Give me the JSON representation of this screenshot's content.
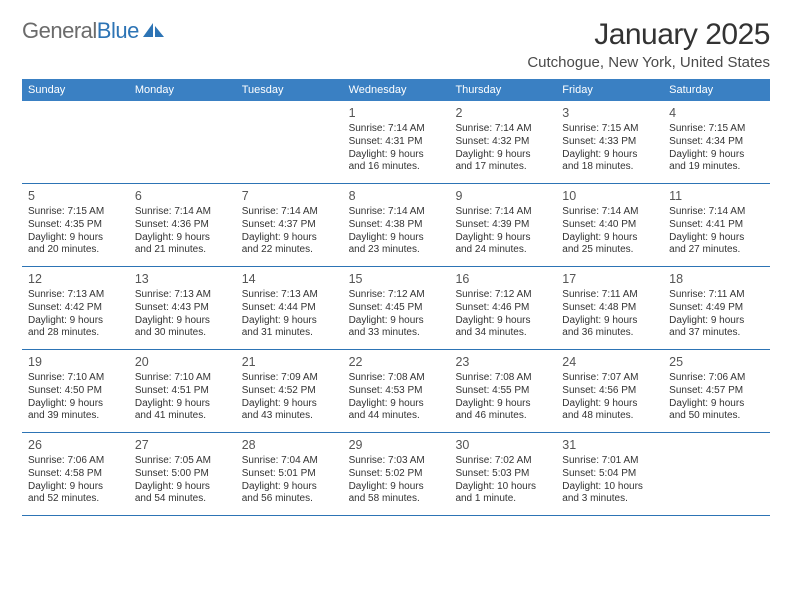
{
  "logo": {
    "text_gray": "General",
    "text_blue": "Blue"
  },
  "title": "January 2025",
  "location": "Cutchogue, New York, United States",
  "colors": {
    "header_bar": "#3a80c3",
    "divider": "#2d74b5",
    "text": "#333333",
    "logo_gray": "#6b6b6b",
    "logo_blue": "#2d74b5"
  },
  "weekdays": [
    "Sunday",
    "Monday",
    "Tuesday",
    "Wednesday",
    "Thursday",
    "Friday",
    "Saturday"
  ],
  "weeks": [
    [
      {
        "num": "",
        "lines": []
      },
      {
        "num": "",
        "lines": []
      },
      {
        "num": "",
        "lines": []
      },
      {
        "num": "1",
        "lines": [
          "Sunrise: 7:14 AM",
          "Sunset: 4:31 PM",
          "Daylight: 9 hours",
          "and 16 minutes."
        ]
      },
      {
        "num": "2",
        "lines": [
          "Sunrise: 7:14 AM",
          "Sunset: 4:32 PM",
          "Daylight: 9 hours",
          "and 17 minutes."
        ]
      },
      {
        "num": "3",
        "lines": [
          "Sunrise: 7:15 AM",
          "Sunset: 4:33 PM",
          "Daylight: 9 hours",
          "and 18 minutes."
        ]
      },
      {
        "num": "4",
        "lines": [
          "Sunrise: 7:15 AM",
          "Sunset: 4:34 PM",
          "Daylight: 9 hours",
          "and 19 minutes."
        ]
      }
    ],
    [
      {
        "num": "5",
        "lines": [
          "Sunrise: 7:15 AM",
          "Sunset: 4:35 PM",
          "Daylight: 9 hours",
          "and 20 minutes."
        ]
      },
      {
        "num": "6",
        "lines": [
          "Sunrise: 7:14 AM",
          "Sunset: 4:36 PM",
          "Daylight: 9 hours",
          "and 21 minutes."
        ]
      },
      {
        "num": "7",
        "lines": [
          "Sunrise: 7:14 AM",
          "Sunset: 4:37 PM",
          "Daylight: 9 hours",
          "and 22 minutes."
        ]
      },
      {
        "num": "8",
        "lines": [
          "Sunrise: 7:14 AM",
          "Sunset: 4:38 PM",
          "Daylight: 9 hours",
          "and 23 minutes."
        ]
      },
      {
        "num": "9",
        "lines": [
          "Sunrise: 7:14 AM",
          "Sunset: 4:39 PM",
          "Daylight: 9 hours",
          "and 24 minutes."
        ]
      },
      {
        "num": "10",
        "lines": [
          "Sunrise: 7:14 AM",
          "Sunset: 4:40 PM",
          "Daylight: 9 hours",
          "and 25 minutes."
        ]
      },
      {
        "num": "11",
        "lines": [
          "Sunrise: 7:14 AM",
          "Sunset: 4:41 PM",
          "Daylight: 9 hours",
          "and 27 minutes."
        ]
      }
    ],
    [
      {
        "num": "12",
        "lines": [
          "Sunrise: 7:13 AM",
          "Sunset: 4:42 PM",
          "Daylight: 9 hours",
          "and 28 minutes."
        ]
      },
      {
        "num": "13",
        "lines": [
          "Sunrise: 7:13 AM",
          "Sunset: 4:43 PM",
          "Daylight: 9 hours",
          "and 30 minutes."
        ]
      },
      {
        "num": "14",
        "lines": [
          "Sunrise: 7:13 AM",
          "Sunset: 4:44 PM",
          "Daylight: 9 hours",
          "and 31 minutes."
        ]
      },
      {
        "num": "15",
        "lines": [
          "Sunrise: 7:12 AM",
          "Sunset: 4:45 PM",
          "Daylight: 9 hours",
          "and 33 minutes."
        ]
      },
      {
        "num": "16",
        "lines": [
          "Sunrise: 7:12 AM",
          "Sunset: 4:46 PM",
          "Daylight: 9 hours",
          "and 34 minutes."
        ]
      },
      {
        "num": "17",
        "lines": [
          "Sunrise: 7:11 AM",
          "Sunset: 4:48 PM",
          "Daylight: 9 hours",
          "and 36 minutes."
        ]
      },
      {
        "num": "18",
        "lines": [
          "Sunrise: 7:11 AM",
          "Sunset: 4:49 PM",
          "Daylight: 9 hours",
          "and 37 minutes."
        ]
      }
    ],
    [
      {
        "num": "19",
        "lines": [
          "Sunrise: 7:10 AM",
          "Sunset: 4:50 PM",
          "Daylight: 9 hours",
          "and 39 minutes."
        ]
      },
      {
        "num": "20",
        "lines": [
          "Sunrise: 7:10 AM",
          "Sunset: 4:51 PM",
          "Daylight: 9 hours",
          "and 41 minutes."
        ]
      },
      {
        "num": "21",
        "lines": [
          "Sunrise: 7:09 AM",
          "Sunset: 4:52 PM",
          "Daylight: 9 hours",
          "and 43 minutes."
        ]
      },
      {
        "num": "22",
        "lines": [
          "Sunrise: 7:08 AM",
          "Sunset: 4:53 PM",
          "Daylight: 9 hours",
          "and 44 minutes."
        ]
      },
      {
        "num": "23",
        "lines": [
          "Sunrise: 7:08 AM",
          "Sunset: 4:55 PM",
          "Daylight: 9 hours",
          "and 46 minutes."
        ]
      },
      {
        "num": "24",
        "lines": [
          "Sunrise: 7:07 AM",
          "Sunset: 4:56 PM",
          "Daylight: 9 hours",
          "and 48 minutes."
        ]
      },
      {
        "num": "25",
        "lines": [
          "Sunrise: 7:06 AM",
          "Sunset: 4:57 PM",
          "Daylight: 9 hours",
          "and 50 minutes."
        ]
      }
    ],
    [
      {
        "num": "26",
        "lines": [
          "Sunrise: 7:06 AM",
          "Sunset: 4:58 PM",
          "Daylight: 9 hours",
          "and 52 minutes."
        ]
      },
      {
        "num": "27",
        "lines": [
          "Sunrise: 7:05 AM",
          "Sunset: 5:00 PM",
          "Daylight: 9 hours",
          "and 54 minutes."
        ]
      },
      {
        "num": "28",
        "lines": [
          "Sunrise: 7:04 AM",
          "Sunset: 5:01 PM",
          "Daylight: 9 hours",
          "and 56 minutes."
        ]
      },
      {
        "num": "29",
        "lines": [
          "Sunrise: 7:03 AM",
          "Sunset: 5:02 PM",
          "Daylight: 9 hours",
          "and 58 minutes."
        ]
      },
      {
        "num": "30",
        "lines": [
          "Sunrise: 7:02 AM",
          "Sunset: 5:03 PM",
          "Daylight: 10 hours",
          "and 1 minute."
        ]
      },
      {
        "num": "31",
        "lines": [
          "Sunrise: 7:01 AM",
          "Sunset: 5:04 PM",
          "Daylight: 10 hours",
          "and 3 minutes."
        ]
      },
      {
        "num": "",
        "lines": []
      }
    ]
  ]
}
